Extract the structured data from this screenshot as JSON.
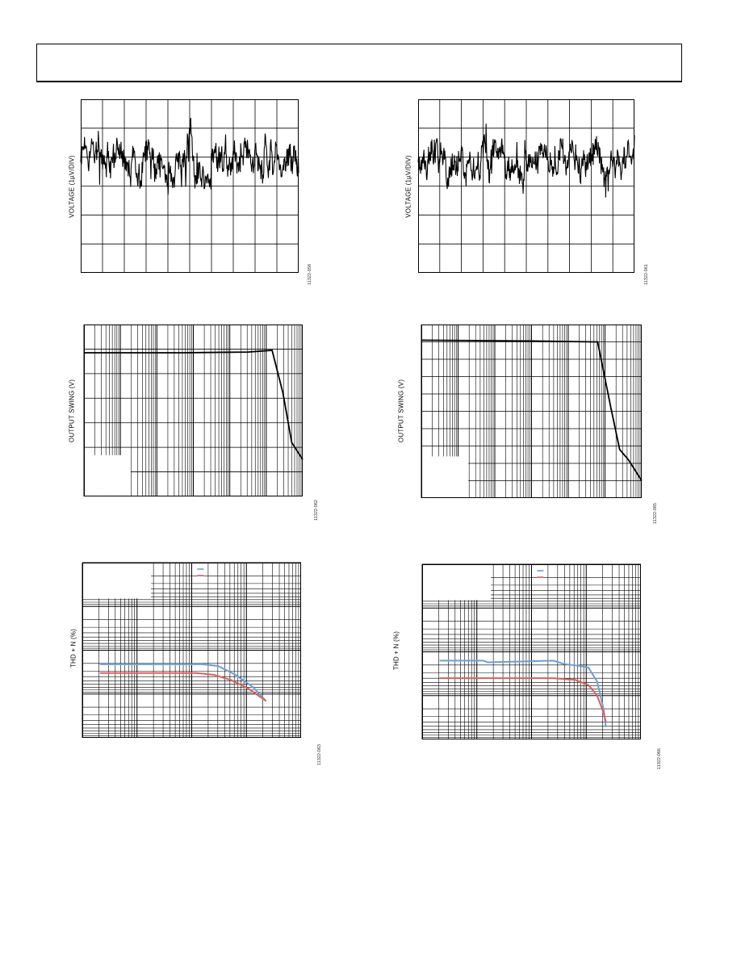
{
  "page": {
    "header": ""
  },
  "chart_data": [
    {
      "id": "noise-left",
      "type": "line",
      "ylabel": "VOLTAGE (1µV/DIV)",
      "figure_id": "11322-058",
      "grid": {
        "vdiv": 10,
        "hdiv": 6
      },
      "ylim": [
        -3,
        3
      ],
      "series": [
        {
          "color": "#000000",
          "seed": 7,
          "amplitude": 0.55,
          "length": 520
        }
      ]
    },
    {
      "id": "noise-right",
      "type": "line",
      "ylabel": "VOLTAGE (1µV/DIV)",
      "figure_id": "11322-061",
      "grid": {
        "vdiv": 10,
        "hdiv": 6
      },
      "ylim": [
        -3,
        3
      ],
      "series": [
        {
          "color": "#000000",
          "seed": 23,
          "amplitude": 0.5,
          "length": 520
        }
      ]
    },
    {
      "id": "swing-left",
      "type": "line",
      "ylabel": "OUTPUT SWING (V)",
      "figure_id": "11322-062",
      "xscale": "log",
      "xdecades": 6,
      "ylim": [
        0,
        7
      ],
      "series": [
        {
          "color": "#000000",
          "x": [
            0,
            0.45,
            0.75,
            0.86,
            0.91,
            0.95,
            1.0
          ],
          "y": [
            5.85,
            5.85,
            5.88,
            5.95,
            4.2,
            2.2,
            1.5
          ]
        }
      ]
    },
    {
      "id": "swing-right",
      "type": "line",
      "ylabel": "OUTPUT SWING (V)",
      "figure_id": "11322-065",
      "xscale": "log",
      "xdecades": 6,
      "ylim": [
        0,
        10
      ],
      "series": [
        {
          "color": "#000000",
          "x": [
            0,
            0.5,
            0.78,
            0.8,
            0.86,
            0.9,
            0.94,
            1.0
          ],
          "y": [
            9.1,
            9.05,
            9.0,
            9.0,
            5.2,
            2.8,
            2.2,
            1.0
          ]
        }
      ]
    },
    {
      "id": "thd-left",
      "type": "line",
      "ylabel": "THD + N (%)",
      "figure_id": "11322-063",
      "xscale": "log",
      "xdecades": 4,
      "yscale": "log",
      "ydecades": 4,
      "series": [
        {
          "color": "#6a9fd4",
          "x": [
            0.08,
            0.55,
            0.62,
            0.7,
            0.78,
            0.84
          ],
          "y": [
            0.13,
            0.13,
            0.14,
            0.19,
            0.26,
            0.34
          ]
        },
        {
          "color": "#d86060",
          "x": [
            0.08,
            0.52,
            0.6,
            0.68,
            0.76,
            0.84
          ],
          "y": [
            0.18,
            0.18,
            0.19,
            0.22,
            0.27,
            0.34
          ]
        }
      ]
    },
    {
      "id": "thd-right",
      "type": "line",
      "ylabel": "THD + N (%)",
      "figure_id": "11322-066",
      "xscale": "log",
      "xdecades": 4,
      "yscale": "log",
      "ydecades": 4,
      "series": [
        {
          "color": "#6a9fd4",
          "x": [
            0.08,
            0.28,
            0.3,
            0.6,
            0.65,
            0.72,
            0.76,
            0.8,
            0.83,
            0.84
          ],
          "y": [
            0.1,
            0.1,
            0.11,
            0.1,
            0.12,
            0.13,
            0.14,
            0.22,
            0.38,
            0.48
          ]
        },
        {
          "color": "#d86060",
          "x": [
            0.08,
            0.6,
            0.7,
            0.76,
            0.8,
            0.83,
            0.84
          ],
          "y": [
            0.2,
            0.2,
            0.21,
            0.24,
            0.3,
            0.4,
            0.45
          ]
        }
      ]
    }
  ]
}
